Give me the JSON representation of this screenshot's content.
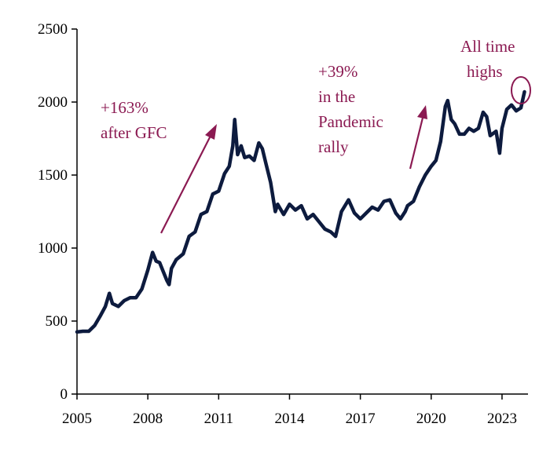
{
  "chart_data": {
    "type": "line",
    "title": "",
    "xlabel": "",
    "ylabel": "",
    "xlim": [
      2005,
      2024.1
    ],
    "ylim": [
      0,
      2500
    ],
    "x_ticks": [
      2005,
      2008,
      2011,
      2014,
      2017,
      2020,
      2023
    ],
    "x_tick_labels": [
      "2005",
      "2008",
      "2011",
      "2014",
      "2017",
      "2020",
      "2023"
    ],
    "y_ticks": [
      0,
      500,
      1000,
      1500,
      2000,
      2500
    ],
    "y_tick_labels": [
      "0",
      "500",
      "1000",
      "1500",
      "2000",
      "2500"
    ],
    "grid": false,
    "legend": "none",
    "line_color": "#0d1b3e",
    "series": [
      {
        "x": [
          2005.0,
          2005.25,
          2005.5,
          2005.75,
          2006.0,
          2006.2,
          2006.37,
          2006.5,
          2006.75,
          2007.0,
          2007.25,
          2007.5,
          2007.75,
          2008.0,
          2008.2,
          2008.35,
          2008.5,
          2008.65,
          2008.8,
          2008.9,
          2009.0,
          2009.2,
          2009.5,
          2009.75,
          2010.0,
          2010.25,
          2010.5,
          2010.75,
          2011.0,
          2011.25,
          2011.45,
          2011.6,
          2011.68,
          2011.8,
          2011.95,
          2012.1,
          2012.3,
          2012.5,
          2012.7,
          2012.85,
          2013.0,
          2013.2,
          2013.4,
          2013.5,
          2013.75,
          2014.0,
          2014.25,
          2014.5,
          2014.75,
          2015.0,
          2015.25,
          2015.5,
          2015.75,
          2015.95,
          2016.2,
          2016.5,
          2016.75,
          2017.0,
          2017.25,
          2017.5,
          2017.75,
          2018.0,
          2018.25,
          2018.5,
          2018.7,
          2018.9,
          2019.0,
          2019.25,
          2019.5,
          2019.75,
          2020.0,
          2020.2,
          2020.4,
          2020.6,
          2020.7,
          2020.85,
          2021.0,
          2021.2,
          2021.4,
          2021.6,
          2021.8,
          2022.0,
          2022.2,
          2022.35,
          2022.5,
          2022.75,
          2022.9,
          2023.0,
          2023.2,
          2023.4,
          2023.6,
          2023.8,
          2023.95
        ],
        "values": [
          425,
          430,
          430,
          470,
          540,
          600,
          690,
          620,
          600,
          640,
          660,
          660,
          720,
          850,
          970,
          910,
          900,
          840,
          780,
          750,
          860,
          920,
          960,
          1080,
          1110,
          1230,
          1250,
          1370,
          1390,
          1510,
          1560,
          1700,
          1880,
          1640,
          1700,
          1620,
          1630,
          1600,
          1720,
          1680,
          1580,
          1450,
          1250,
          1300,
          1230,
          1300,
          1260,
          1290,
          1200,
          1230,
          1180,
          1130,
          1110,
          1080,
          1250,
          1330,
          1240,
          1200,
          1240,
          1280,
          1260,
          1320,
          1330,
          1240,
          1200,
          1250,
          1290,
          1320,
          1420,
          1500,
          1560,
          1600,
          1730,
          1970,
          2010,
          1880,
          1850,
          1780,
          1780,
          1820,
          1800,
          1820,
          1930,
          1900,
          1770,
          1800,
          1650,
          1820,
          1950,
          1980,
          1940,
          1960,
          2070
        ]
      }
    ]
  },
  "annotations": {
    "gfc_pct": "+163%",
    "gfc_text": "after GFC",
    "pandemic_pct": "+39%",
    "pandemic_line2": "in the",
    "pandemic_line3": "Pandemic",
    "pandemic_line4": "rally",
    "ath_line1": "All time",
    "ath_line2": "highs",
    "color": "#8b1a52"
  }
}
